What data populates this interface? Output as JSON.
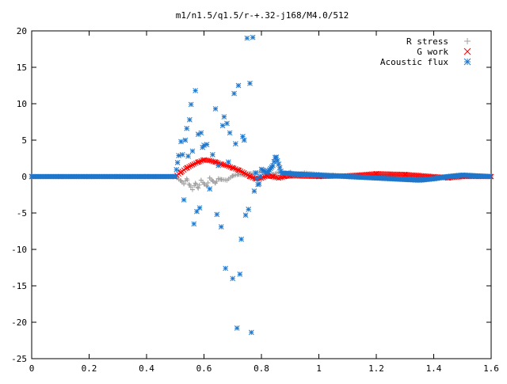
{
  "chart_data": {
    "type": "scatter",
    "title": "m1/n1.5/q1.5/r-+.32-j168/M4.0/512",
    "xlabel": "",
    "ylabel": "",
    "xlim": [
      0,
      1.6
    ],
    "ylim": [
      -25,
      20
    ],
    "xticks": [
      0,
      0.2,
      0.4,
      0.6,
      0.8,
      1,
      1.2,
      1.4,
      1.6
    ],
    "xtick_labels": [
      "0",
      "0.2",
      "0.4",
      "0.6",
      "0.8",
      "1",
      "1.2",
      "1.4",
      "1.6"
    ],
    "yticks": [
      -25,
      -20,
      -15,
      -10,
      -5,
      0,
      5,
      10,
      15,
      20
    ],
    "ytick_labels": [
      "-25",
      "-20",
      "-15",
      "-10",
      "-5",
      "0",
      "5",
      "10",
      "15",
      "20"
    ],
    "grid": false,
    "legend_position": "top-right",
    "series": [
      {
        "name": "R stress",
        "marker": "plus",
        "color": "#a0a0a0",
        "points": [
          [
            0.0,
            0
          ],
          [
            0.1,
            0
          ],
          [
            0.2,
            0
          ],
          [
            0.3,
            0
          ],
          [
            0.4,
            0
          ],
          [
            0.5,
            0
          ],
          [
            0.52,
            -0.6
          ],
          [
            0.53,
            -1.0
          ],
          [
            0.54,
            -0.3
          ],
          [
            0.55,
            -1.2
          ],
          [
            0.56,
            -1.8
          ],
          [
            0.57,
            -0.9
          ],
          [
            0.58,
            -1.6
          ],
          [
            0.59,
            -0.5
          ],
          [
            0.6,
            -1.0
          ],
          [
            0.61,
            -1.3
          ],
          [
            0.62,
            -0.2
          ],
          [
            0.63,
            -0.6
          ],
          [
            0.64,
            -0.9
          ],
          [
            0.65,
            -0.3
          ],
          [
            0.66,
            -0.4
          ],
          [
            0.68,
            -0.5
          ],
          [
            0.7,
            0.1
          ],
          [
            0.72,
            0.3
          ],
          [
            0.74,
            0.2
          ],
          [
            0.76,
            0.4
          ],
          [
            0.78,
            0.5
          ],
          [
            0.8,
            0.6
          ],
          [
            0.82,
            0.4
          ],
          [
            0.84,
            0.3
          ],
          [
            0.86,
            0.6
          ],
          [
            0.88,
            0.3
          ],
          [
            0.9,
            0.6
          ],
          [
            0.92,
            0.3
          ],
          [
            0.95,
            0.5
          ],
          [
            1.0,
            0.3
          ],
          [
            1.05,
            0.2
          ],
          [
            1.1,
            0.1
          ],
          [
            1.2,
            0.1
          ],
          [
            1.3,
            0
          ],
          [
            1.4,
            0
          ],
          [
            1.5,
            0
          ],
          [
            1.6,
            0
          ]
        ]
      },
      {
        "name": "G work",
        "marker": "cross",
        "color": "#ff0000",
        "points": [
          [
            0.0,
            0
          ],
          [
            0.1,
            0
          ],
          [
            0.2,
            0
          ],
          [
            0.3,
            0
          ],
          [
            0.4,
            0
          ],
          [
            0.5,
            0
          ],
          [
            0.52,
            0.6
          ],
          [
            0.54,
            1.2
          ],
          [
            0.56,
            1.6
          ],
          [
            0.58,
            2.0
          ],
          [
            0.6,
            2.3
          ],
          [
            0.62,
            2.2
          ],
          [
            0.64,
            2.0
          ],
          [
            0.66,
            1.7
          ],
          [
            0.68,
            1.5
          ],
          [
            0.7,
            1.2
          ],
          [
            0.72,
            0.9
          ],
          [
            0.74,
            0.5
          ],
          [
            0.76,
            0.0
          ],
          [
            0.78,
            -0.3
          ],
          [
            0.8,
            -0.2
          ],
          [
            0.82,
            0.1
          ],
          [
            0.84,
            0.0
          ],
          [
            0.86,
            -0.2
          ],
          [
            0.88,
            0.0
          ],
          [
            0.9,
            0.1
          ],
          [
            1.0,
            0.0
          ],
          [
            1.1,
            0.1
          ],
          [
            1.2,
            0.4
          ],
          [
            1.3,
            0.3
          ],
          [
            1.4,
            0.0
          ],
          [
            1.45,
            -0.2
          ],
          [
            1.5,
            0.0
          ],
          [
            1.6,
            0
          ]
        ]
      },
      {
        "name": "Acoustic flux",
        "marker": "star",
        "color": "#1f77cc",
        "points": [
          [
            0.0,
            0
          ],
          [
            0.05,
            0
          ],
          [
            0.1,
            0
          ],
          [
            0.15,
            0
          ],
          [
            0.2,
            0
          ],
          [
            0.25,
            0
          ],
          [
            0.3,
            0
          ],
          [
            0.35,
            0
          ],
          [
            0.4,
            0
          ],
          [
            0.45,
            0
          ],
          [
            0.5,
            0
          ],
          [
            0.52,
            4.8
          ],
          [
            0.525,
            3.0
          ],
          [
            0.53,
            -3.2
          ],
          [
            0.535,
            5.0
          ],
          [
            0.54,
            6.6
          ],
          [
            0.545,
            2.8
          ],
          [
            0.55,
            7.8
          ],
          [
            0.555,
            9.9
          ],
          [
            0.56,
            3.5
          ],
          [
            0.565,
            -6.5
          ],
          [
            0.57,
            11.8
          ],
          [
            0.575,
            -4.8
          ],
          [
            0.58,
            5.8
          ],
          [
            0.585,
            -4.3
          ],
          [
            0.59,
            6.0
          ],
          [
            0.595,
            4.0
          ],
          [
            0.6,
            4.3
          ],
          [
            0.61,
            4.4
          ],
          [
            0.62,
            -1.7
          ],
          [
            0.63,
            3.0
          ],
          [
            0.64,
            9.3
          ],
          [
            0.645,
            -5.2
          ],
          [
            0.65,
            1.5
          ],
          [
            0.66,
            -6.9
          ],
          [
            0.665,
            7.0
          ],
          [
            0.67,
            8.2
          ],
          [
            0.675,
            -12.6
          ],
          [
            0.68,
            7.3
          ],
          [
            0.685,
            2.0
          ],
          [
            0.69,
            6.0
          ],
          [
            0.7,
            -14.0
          ],
          [
            0.705,
            11.4
          ],
          [
            0.71,
            4.5
          ],
          [
            0.715,
            -20.8
          ],
          [
            0.72,
            12.5
          ],
          [
            0.725,
            -13.4
          ],
          [
            0.73,
            -8.6
          ],
          [
            0.735,
            5.5
          ],
          [
            0.74,
            5.0
          ],
          [
            0.745,
            -5.3
          ],
          [
            0.75,
            19.0
          ],
          [
            0.755,
            -4.5
          ],
          [
            0.76,
            12.8
          ],
          [
            0.765,
            -21.4
          ],
          [
            0.77,
            19.1
          ],
          [
            0.775,
            -2.0
          ],
          [
            0.78,
            0.5
          ],
          [
            0.79,
            -1.5
          ],
          [
            0.8,
            1.0
          ],
          [
            0.82,
            0.5
          ],
          [
            0.84,
            1.5
          ],
          [
            0.85,
            2.9
          ],
          [
            0.87,
            0.5
          ],
          [
            0.9,
            0.4
          ],
          [
            0.95,
            0.3
          ],
          [
            1.0,
            0.2
          ],
          [
            1.05,
            0.1
          ],
          [
            1.1,
            0
          ],
          [
            1.15,
            -0.1
          ],
          [
            1.2,
            -0.2
          ],
          [
            1.25,
            -0.3
          ],
          [
            1.3,
            -0.4
          ],
          [
            1.35,
            -0.5
          ],
          [
            1.4,
            -0.3
          ],
          [
            1.45,
            0.0
          ],
          [
            1.5,
            0.2
          ],
          [
            1.55,
            0.1
          ],
          [
            1.6,
            0
          ]
        ]
      }
    ]
  }
}
